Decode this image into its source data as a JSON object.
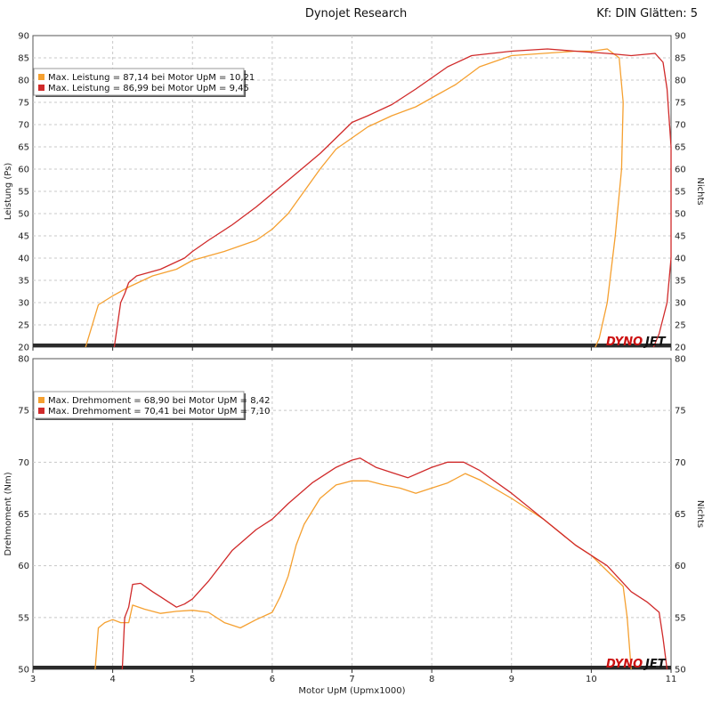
{
  "header": {
    "title": "Dynojet Research",
    "right": "Kf: DIN Glätten: 5"
  },
  "logo": {
    "text_a": "DYNO",
    "text_b": "JET",
    "color_a": "#cc1111",
    "color_b": "#111111"
  },
  "colors": {
    "orange": "#f5a030",
    "red": "#d02a2a",
    "grid": "#c8c8c8",
    "axis_band": "#2b2b2b"
  },
  "chart_data": [
    {
      "type": "line",
      "xlabel": "Motor UpM (Upmx1000)",
      "ylabel": "Leistung (Ps)",
      "ylabel_right": "Nichts",
      "xlim": [
        3,
        11
      ],
      "ylim": [
        20,
        90
      ],
      "xticks": [
        "3",
        "4",
        "5",
        "6",
        "7",
        "8",
        "9",
        "10",
        "11"
      ],
      "yticks": [
        "20",
        "25",
        "30",
        "35",
        "40",
        "45",
        "50",
        "55",
        "60",
        "65",
        "70",
        "75",
        "80",
        "85",
        "90"
      ],
      "grid": true,
      "legend_position": "top-left",
      "legend": [
        "Max. Leistung = 87,14 bei Motor UpM = 10,21",
        "Max. Leistung = 86,99 bei Motor UpM = 9,45"
      ],
      "series": [
        {
          "color": "orange",
          "x": [
            3.66,
            3.82,
            4.0,
            4.2,
            4.5,
            4.8,
            5.0,
            5.4,
            5.8,
            6.0,
            6.2,
            6.4,
            6.6,
            6.8,
            7.0,
            7.2,
            7.5,
            7.8,
            8.0,
            8.3,
            8.6,
            9.0,
            9.4,
            9.8,
            10.0,
            10.2,
            10.35,
            10.4,
            10.38,
            10.3,
            10.2,
            10.1,
            10.05
          ],
          "y": [
            20,
            29.5,
            31.5,
            33.5,
            36,
            37.5,
            39.5,
            41.5,
            44,
            46.5,
            50,
            55,
            60,
            64.5,
            67,
            69.5,
            72,
            74,
            76,
            79,
            83,
            85.5,
            86,
            86.5,
            86.5,
            87,
            85,
            75,
            60,
            45,
            30,
            22,
            20
          ]
        },
        {
          "color": "red",
          "x": [
            4.02,
            4.1,
            4.15,
            4.2,
            4.3,
            4.6,
            4.9,
            5.0,
            5.2,
            5.5,
            5.8,
            6.0,
            6.3,
            6.6,
            6.8,
            7.0,
            7.2,
            7.5,
            7.8,
            8.0,
            8.2,
            8.5,
            9.0,
            9.45,
            9.8,
            10.2,
            10.5,
            10.8,
            10.9,
            10.95,
            11.0,
            11.0,
            10.95,
            10.85,
            10.78
          ],
          "y": [
            20,
            30,
            32,
            34.5,
            36,
            37.5,
            40,
            41.5,
            44,
            47.5,
            51.5,
            54.5,
            59,
            63.5,
            67,
            70.5,
            72,
            74.5,
            78,
            80.5,
            83,
            85.5,
            86.5,
            87,
            86.5,
            86,
            85.5,
            86,
            84,
            78,
            65,
            40,
            30,
            23,
            20
          ]
        }
      ]
    },
    {
      "type": "line",
      "xlabel": "Motor UpM (Upmx1000)",
      "ylabel": "Drehmoment (Nm)",
      "ylabel_right": "Nichts",
      "xlim": [
        3,
        11
      ],
      "ylim": [
        50,
        80
      ],
      "xticks": [
        "3",
        "4",
        "5",
        "6",
        "7",
        "8",
        "9",
        "10",
        "11"
      ],
      "yticks": [
        "50",
        "55",
        "60",
        "65",
        "70",
        "75",
        "80"
      ],
      "grid": true,
      "legend_position": "top-left",
      "legend": [
        "Max. Drehmoment = 68,90 bei Motor UpM = 8,42",
        "Max. Drehmoment = 70,41 bei Motor UpM = 7,10"
      ],
      "series": [
        {
          "color": "orange",
          "x": [
            3.78,
            3.82,
            3.9,
            4.0,
            4.1,
            4.2,
            4.25,
            4.4,
            4.6,
            4.8,
            5.0,
            5.2,
            5.4,
            5.6,
            5.8,
            6.0,
            6.1,
            6.2,
            6.3,
            6.4,
            6.6,
            6.8,
            7.0,
            7.2,
            7.4,
            7.6,
            7.8,
            8.0,
            8.2,
            8.42,
            8.6,
            9.0,
            9.4,
            9.8,
            10.0,
            10.2,
            10.4,
            10.45,
            10.48,
            10.5
          ],
          "y": [
            50,
            54,
            54.5,
            54.8,
            54.5,
            54.5,
            56.2,
            55.8,
            55.4,
            55.6,
            55.7,
            55.5,
            54.5,
            54,
            54.8,
            55.5,
            57,
            59,
            62,
            64,
            66.5,
            67.8,
            68.2,
            68.2,
            67.8,
            67.5,
            67,
            67.5,
            68,
            68.9,
            68.3,
            66.5,
            64.5,
            62,
            61,
            59.5,
            58,
            55,
            52,
            50
          ]
        },
        {
          "color": "red",
          "x": [
            4.12,
            4.15,
            4.2,
            4.25,
            4.35,
            4.5,
            4.6,
            4.7,
            4.8,
            4.9,
            5.0,
            5.2,
            5.5,
            5.8,
            6.0,
            6.2,
            6.5,
            6.8,
            7.0,
            7.1,
            7.3,
            7.5,
            7.7,
            8.0,
            8.2,
            8.4,
            8.6,
            9.0,
            9.4,
            9.8,
            10.2,
            10.5,
            10.7,
            10.85,
            10.9,
            10.95
          ],
          "y": [
            50,
            55,
            56,
            58.2,
            58.3,
            57.5,
            57,
            56.5,
            56,
            56.3,
            56.8,
            58.5,
            61.5,
            63.5,
            64.5,
            66,
            68,
            69.5,
            70.2,
            70.4,
            69.5,
            69,
            68.5,
            69.5,
            70,
            70,
            69.2,
            67,
            64.5,
            62,
            60,
            57.5,
            56.5,
            55.5,
            53,
            50
          ]
        }
      ]
    }
  ]
}
